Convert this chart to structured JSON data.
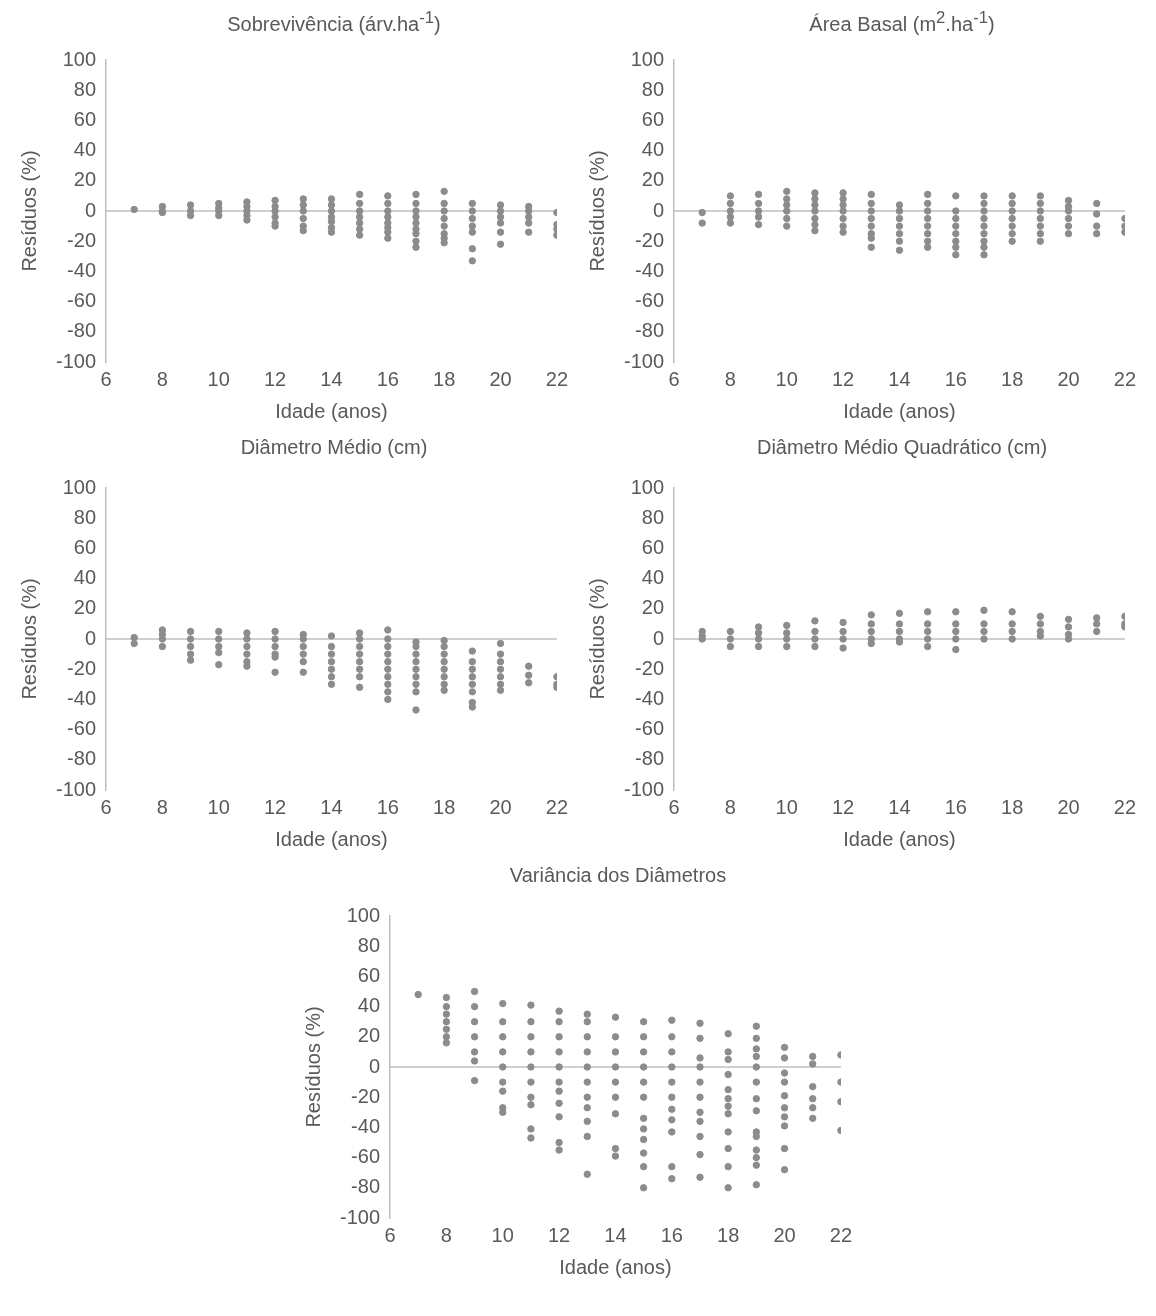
{
  "chart_data": [
    {
      "type": "scatter",
      "title": "Sobrevivência (árv.ha$^{-1}$)",
      "ref_lines": [
        {
          "axis": "y",
          "value": 0,
          "color": "#bfbfbf"
        }
      ],
      "xlabel": "Idade (anos)",
      "ylabel": "Resíduos (%)",
      "xlim": [
        6,
        22
      ],
      "xticks": [
        6,
        8,
        10,
        12,
        14,
        16,
        18,
        20,
        22
      ],
      "ylim": [
        -100,
        100
      ],
      "yticks": [
        -100,
        -80,
        -60,
        -40,
        -20,
        0,
        20,
        40,
        60,
        80,
        100
      ],
      "grid": false,
      "legend": false,
      "marker": "circle",
      "series": [
        {
          "color": "#8c8c8c",
          "x": [
            7,
            8,
            8,
            8,
            9,
            9,
            9,
            10,
            10,
            10,
            10,
            11,
            11,
            11,
            11,
            11,
            12,
            12,
            12,
            12,
            12,
            12,
            13,
            13,
            13,
            13,
            13,
            13,
            14,
            14,
            14,
            14,
            14,
            14,
            14,
            15,
            15,
            15,
            15,
            15,
            15,
            15,
            16,
            16,
            16,
            16,
            16,
            16,
            16,
            16,
            17,
            17,
            17,
            17,
            17,
            17,
            17,
            17,
            17,
            18,
            18,
            18,
            18,
            18,
            18,
            18,
            18,
            19,
            19,
            19,
            19,
            19,
            19,
            19,
            20,
            20,
            20,
            20,
            20,
            20,
            21,
            21,
            21,
            21,
            21,
            22,
            22,
            22,
            22
          ],
          "values": [
            1,
            3,
            0,
            -1,
            4,
            0,
            -3,
            5,
            2,
            0,
            -3,
            6,
            3,
            0,
            -3,
            -6,
            7,
            3,
            0,
            -4,
            -8,
            -10,
            8,
            4,
            0,
            -5,
            -10,
            -13,
            8,
            4,
            0,
            -4,
            -7,
            -11,
            -14,
            11,
            5,
            0,
            -4,
            -8,
            -12,
            -16,
            10,
            5,
            0,
            -4,
            -8,
            -11,
            -14,
            -18,
            11,
            5,
            0,
            -4,
            -8,
            -12,
            -15,
            -20,
            -24,
            13,
            5,
            0,
            -5,
            -10,
            -15,
            -18,
            -21,
            5,
            0,
            -5,
            -10,
            -14,
            -25,
            -33,
            4,
            0,
            -4,
            -8,
            -14,
            -22,
            3,
            0,
            -4,
            -8,
            -14,
            -1,
            -9,
            -12,
            -16
          ]
        }
      ]
    },
    {
      "type": "scatter",
      "title": "Área Basal (m$^{2}$.ha$^{-1}$)",
      "ref_lines": [
        {
          "axis": "y",
          "value": 0,
          "color": "#bfbfbf"
        }
      ],
      "xlabel": "Idade (anos)",
      "ylabel": "Resíduos (%)",
      "xlim": [
        6,
        22
      ],
      "xticks": [
        6,
        8,
        10,
        12,
        14,
        16,
        18,
        20,
        22
      ],
      "ylim": [
        -100,
        100
      ],
      "yticks": [
        -100,
        -80,
        -60,
        -40,
        -20,
        0,
        20,
        40,
        60,
        80,
        100
      ],
      "grid": false,
      "legend": false,
      "marker": "circle",
      "series": [
        {
          "color": "#8c8c8c",
          "x": [
            7,
            7,
            8,
            8,
            8,
            8,
            8,
            9,
            9,
            9,
            9,
            9,
            10,
            10,
            10,
            10,
            10,
            10,
            11,
            11,
            11,
            11,
            11,
            11,
            11,
            12,
            12,
            12,
            12,
            12,
            12,
            12,
            13,
            13,
            13,
            13,
            13,
            13,
            13,
            13,
            14,
            14,
            14,
            14,
            14,
            14,
            14,
            15,
            15,
            15,
            15,
            15,
            15,
            15,
            15,
            16,
            16,
            16,
            16,
            16,
            16,
            16,
            16,
            17,
            17,
            17,
            17,
            17,
            17,
            17,
            17,
            17,
            18,
            18,
            18,
            18,
            18,
            18,
            18,
            19,
            19,
            19,
            19,
            19,
            19,
            19,
            20,
            20,
            20,
            20,
            20,
            20,
            21,
            21,
            21,
            21,
            22,
            22,
            22
          ],
          "values": [
            -1,
            -8,
            10,
            5,
            0,
            -4,
            -8,
            11,
            5,
            0,
            -4,
            -9,
            13,
            8,
            4,
            0,
            -5,
            -10,
            12,
            8,
            4,
            0,
            -5,
            -9,
            -13,
            12,
            8,
            4,
            0,
            -5,
            -10,
            -14,
            11,
            5,
            0,
            -5,
            -10,
            -15,
            -18,
            -24,
            4,
            0,
            -5,
            -10,
            -15,
            -20,
            -26,
            11,
            5,
            0,
            -5,
            -10,
            -15,
            -20,
            -24,
            10,
            0,
            -5,
            -10,
            -15,
            -20,
            -24,
            -29,
            10,
            5,
            0,
            -5,
            -10,
            -15,
            -20,
            -24,
            -29,
            10,
            5,
            0,
            -5,
            -10,
            -15,
            -20,
            10,
            5,
            0,
            -5,
            -10,
            -15,
            -20,
            7,
            3,
            0,
            -5,
            -10,
            -15,
            5,
            -2,
            -10,
            -15,
            -5,
            -10,
            -14
          ]
        }
      ]
    },
    {
      "type": "scatter",
      "title": "Diâmetro Médio (cm)",
      "ref_lines": [
        {
          "axis": "y",
          "value": 0,
          "color": "#bfbfbf"
        }
      ],
      "xlabel": "Idade (anos)",
      "ylabel": "Resíduos (%)",
      "xlim": [
        6,
        22
      ],
      "xticks": [
        6,
        8,
        10,
        12,
        14,
        16,
        18,
        20,
        22
      ],
      "ylim": [
        -100,
        100
      ],
      "yticks": [
        -100,
        -80,
        -60,
        -40,
        -20,
        0,
        20,
        40,
        60,
        80,
        100
      ],
      "grid": false,
      "legend": false,
      "marker": "circle",
      "series": [
        {
          "color": "#8c8c8c",
          "x": [
            7,
            7,
            8,
            8,
            8,
            8,
            9,
            9,
            9,
            9,
            9,
            10,
            10,
            10,
            10,
            10,
            11,
            11,
            11,
            11,
            11,
            11,
            12,
            12,
            12,
            12,
            12,
            12,
            13,
            13,
            13,
            13,
            13,
            13,
            14,
            14,
            14,
            14,
            14,
            14,
            14,
            15,
            15,
            15,
            15,
            15,
            15,
            15,
            15,
            16,
            16,
            16,
            16,
            16,
            16,
            16,
            16,
            16,
            16,
            17,
            17,
            17,
            17,
            17,
            17,
            17,
            17,
            17,
            18,
            18,
            18,
            18,
            18,
            18,
            18,
            18,
            19,
            19,
            19,
            19,
            19,
            19,
            19,
            19,
            20,
            20,
            20,
            20,
            20,
            20,
            20,
            21,
            21,
            21,
            22,
            22,
            22
          ],
          "values": [
            1,
            -3,
            6,
            3,
            0,
            -5,
            5,
            0,
            -5,
            -10,
            -14,
            5,
            0,
            -5,
            -9,
            -17,
            4,
            0,
            -5,
            -10,
            -15,
            -18,
            5,
            0,
            -5,
            -10,
            -12,
            -22,
            3,
            0,
            -5,
            -10,
            -15,
            -22,
            2,
            -5,
            -10,
            -15,
            -20,
            -25,
            -30,
            4,
            0,
            -5,
            -10,
            -15,
            -20,
            -25,
            -32,
            6,
            0,
            -5,
            -10,
            -15,
            -20,
            -25,
            -30,
            -35,
            -40,
            -2,
            -5,
            -10,
            -15,
            -20,
            -25,
            -30,
            -35,
            -47,
            -1,
            -5,
            -10,
            -15,
            -20,
            -25,
            -30,
            -34,
            -8,
            -15,
            -20,
            -25,
            -30,
            -35,
            -42,
            -45,
            -3,
            -10,
            -15,
            -20,
            -25,
            -30,
            -34,
            -18,
            -24,
            -29,
            -25,
            -30,
            -32
          ]
        }
      ]
    },
    {
      "type": "scatter",
      "title": "Diâmetro Médio Quadrático (cm)",
      "ref_lines": [
        {
          "axis": "y",
          "value": 0,
          "color": "#bfbfbf"
        }
      ],
      "xlabel": "Idade (anos)",
      "ylabel": "Resíduos (%)",
      "xlim": [
        6,
        22
      ],
      "xticks": [
        6,
        8,
        10,
        12,
        14,
        16,
        18,
        20,
        22
      ],
      "ylim": [
        -100,
        100
      ],
      "yticks": [
        -100,
        -80,
        -60,
        -40,
        -20,
        0,
        20,
        40,
        60,
        80,
        100
      ],
      "grid": false,
      "legend": false,
      "marker": "circle",
      "series": [
        {
          "color": "#8c8c8c",
          "x": [
            7,
            7,
            7,
            8,
            8,
            8,
            9,
            9,
            9,
            9,
            10,
            10,
            10,
            10,
            11,
            11,
            11,
            11,
            12,
            12,
            12,
            12,
            13,
            13,
            13,
            13,
            13,
            14,
            14,
            14,
            14,
            14,
            15,
            15,
            15,
            15,
            15,
            16,
            16,
            16,
            16,
            16,
            17,
            17,
            17,
            17,
            18,
            18,
            18,
            18,
            19,
            19,
            19,
            19,
            20,
            20,
            20,
            20,
            21,
            21,
            21,
            22,
            22,
            22
          ],
          "values": [
            5,
            2,
            0,
            5,
            0,
            -5,
            8,
            4,
            0,
            -5,
            9,
            4,
            0,
            -5,
            12,
            5,
            0,
            -5,
            11,
            5,
            0,
            -6,
            16,
            10,
            5,
            0,
            -3,
            17,
            10,
            5,
            0,
            -2,
            18,
            10,
            5,
            0,
            -5,
            18,
            10,
            5,
            0,
            -7,
            19,
            10,
            5,
            0,
            18,
            10,
            5,
            0,
            15,
            10,
            5,
            2,
            13,
            8,
            3,
            0,
            14,
            10,
            5,
            15,
            10,
            8
          ]
        }
      ]
    },
    {
      "type": "scatter",
      "title": "Variância dos Diâmetros",
      "ref_lines": [
        {
          "axis": "y",
          "value": 0,
          "color": "#bfbfbf"
        }
      ],
      "xlabel": "Idade (anos)",
      "ylabel": "Resíduos (%)",
      "xlim": [
        6,
        22
      ],
      "xticks": [
        6,
        8,
        10,
        12,
        14,
        16,
        18,
        20,
        22
      ],
      "ylim": [
        -100,
        100
      ],
      "yticks": [
        -100,
        -80,
        -60,
        -40,
        -20,
        0,
        20,
        40,
        60,
        80,
        100
      ],
      "grid": false,
      "legend": false,
      "marker": "circle",
      "series": [
        {
          "color": "#8c8c8c",
          "x": [
            7,
            8,
            8,
            8,
            8,
            8,
            8,
            8,
            9,
            9,
            9,
            9,
            9,
            9,
            9,
            10,
            10,
            10,
            10,
            10,
            10,
            10,
            10,
            10,
            11,
            11,
            11,
            11,
            11,
            11,
            11,
            11,
            11,
            11,
            12,
            12,
            12,
            12,
            12,
            12,
            12,
            12,
            12,
            12,
            12,
            13,
            13,
            13,
            13,
            13,
            13,
            13,
            13,
            13,
            13,
            13,
            14,
            14,
            14,
            14,
            14,
            14,
            14,
            14,
            14,
            15,
            15,
            15,
            15,
            15,
            15,
            15,
            15,
            15,
            15,
            15,
            15,
            16,
            16,
            16,
            16,
            16,
            16,
            16,
            16,
            16,
            16,
            16,
            17,
            17,
            17,
            17,
            17,
            17,
            17,
            17,
            17,
            17,
            17,
            18,
            18,
            18,
            18,
            18,
            18,
            18,
            18,
            18,
            18,
            18,
            18,
            19,
            19,
            19,
            19,
            19,
            19,
            19,
            19,
            19,
            19,
            19,
            19,
            19,
            19,
            20,
            20,
            20,
            20,
            20,
            20,
            20,
            20,
            20,
            20,
            21,
            21,
            21,
            21,
            21,
            21,
            22,
            22,
            22,
            22
          ],
          "values": [
            48,
            46,
            40,
            35,
            30,
            25,
            20,
            16,
            50,
            40,
            30,
            20,
            10,
            4,
            -9,
            42,
            30,
            20,
            10,
            0,
            -10,
            -16,
            -27,
            -30,
            41,
            30,
            20,
            10,
            0,
            -10,
            -20,
            -25,
            -41,
            -47,
            37,
            30,
            20,
            10,
            0,
            -10,
            -16,
            -24,
            -33,
            -50,
            -55,
            35,
            30,
            20,
            10,
            0,
            -10,
            -20,
            -27,
            -36,
            -46,
            -71,
            33,
            20,
            10,
            0,
            -10,
            -20,
            -31,
            -54,
            -59,
            30,
            20,
            10,
            0,
            -10,
            -20,
            -34,
            -41,
            -48,
            -57,
            -66,
            -80,
            31,
            20,
            10,
            0,
            -10,
            -20,
            -28,
            -35,
            -43,
            -66,
            -74,
            29,
            19,
            6,
            0,
            -10,
            -20,
            -30,
            -36,
            -46,
            -58,
            -73,
            22,
            10,
            5,
            -5,
            -15,
            -21,
            -26,
            -31,
            -43,
            -54,
            -66,
            -80,
            27,
            19,
            12,
            7,
            0,
            -10,
            -21,
            -29,
            -43,
            -46,
            -55,
            -60,
            -65,
            -78,
            13,
            6,
            -4,
            -10,
            -19,
            -27,
            -33,
            -39,
            -54,
            -68,
            7,
            2,
            -13,
            -21,
            -27,
            -34,
            8,
            -10,
            -23,
            -42
          ]
        }
      ]
    }
  ]
}
